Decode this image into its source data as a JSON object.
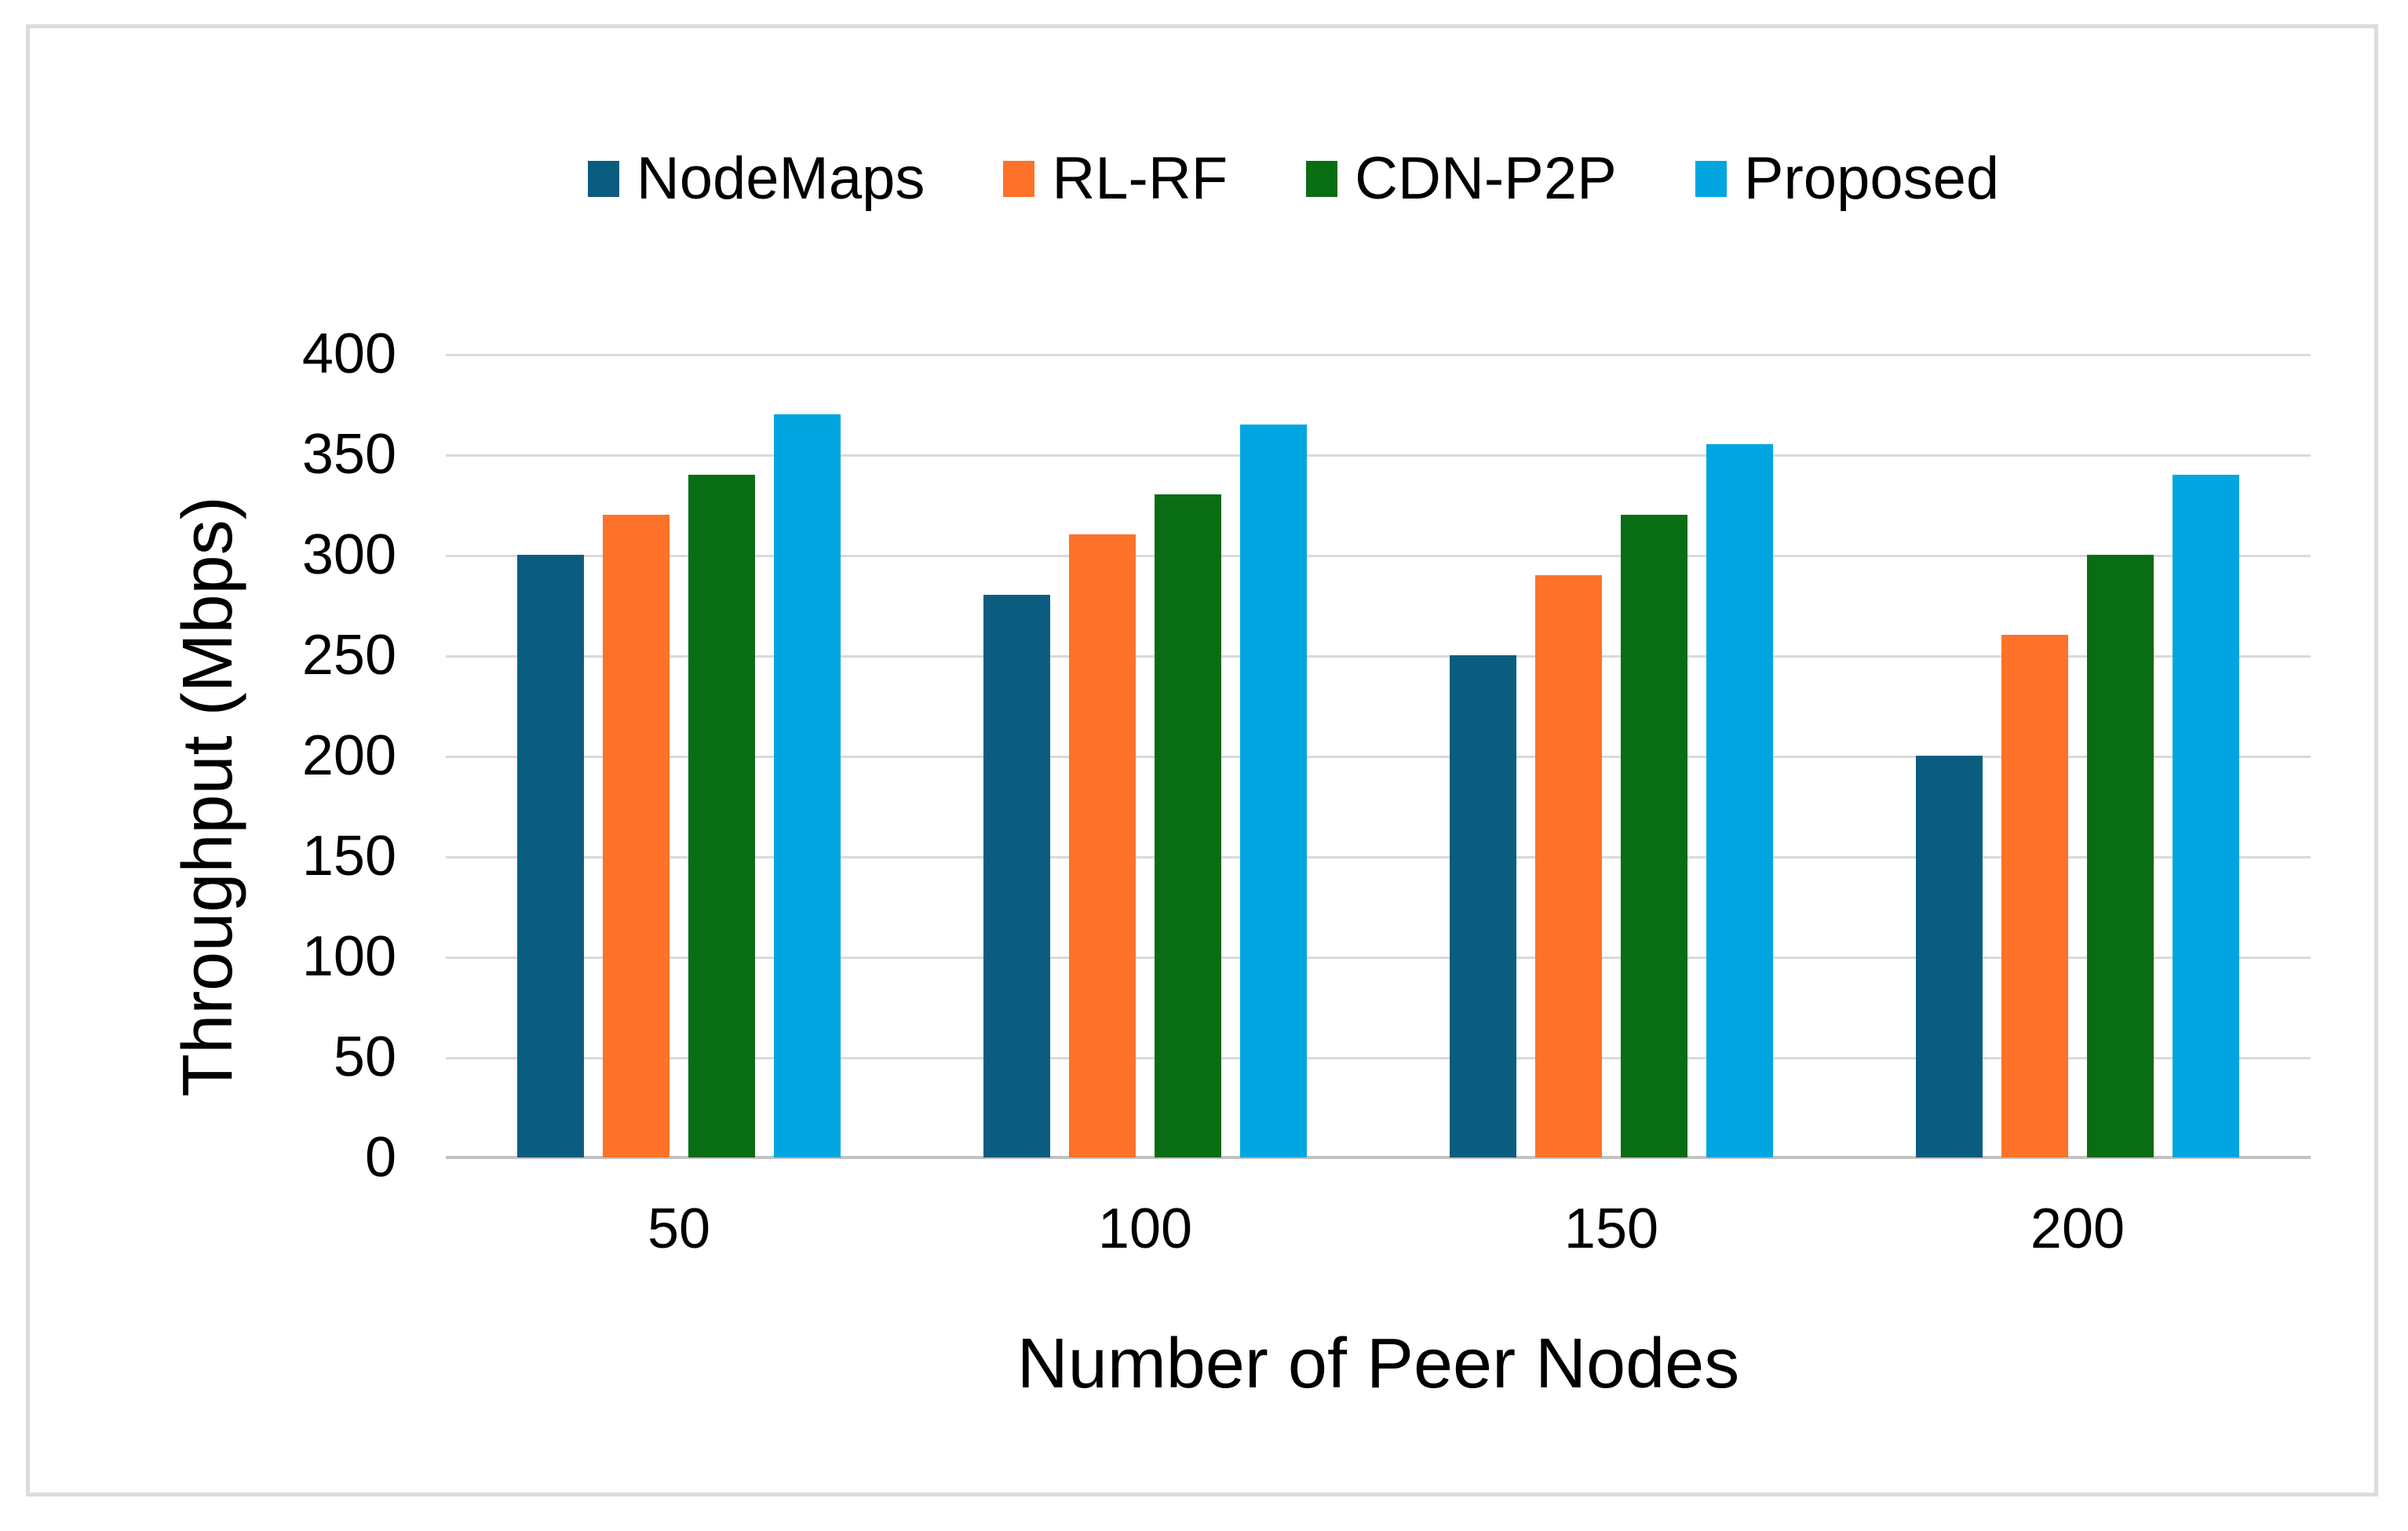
{
  "figure": {
    "background": "#ffffff",
    "border_color": "#dcdcdc"
  },
  "chart_data": {
    "type": "bar",
    "title": "",
    "xlabel": "Number of Peer Nodes",
    "ylabel": "Throughput (Mbps)",
    "categories": [
      "50",
      "100",
      "150",
      "200"
    ],
    "series": [
      {
        "name": "NodeMaps",
        "color": "#0B5D80",
        "values": [
          300,
          280,
          250,
          200
        ]
      },
      {
        "name": "RL-RF",
        "color": "#FD7228",
        "values": [
          320,
          310,
          290,
          260
        ]
      },
      {
        "name": "CDN-P2P",
        "color": "#096E13",
        "values": [
          340,
          330,
          320,
          300
        ]
      },
      {
        "name": "Proposed",
        "color": "#01A6E0",
        "values": [
          370,
          365,
          355,
          340
        ]
      }
    ],
    "ylim": [
      0,
      400
    ],
    "ytick_step": 50,
    "yticks": [
      "0",
      "50",
      "100",
      "150",
      "200",
      "250",
      "300",
      "350",
      "400"
    ],
    "grid": "horizontal",
    "gridline_color": "#d9d9d9",
    "axisline_color": "#c2c2c2",
    "legend_position": "top"
  }
}
